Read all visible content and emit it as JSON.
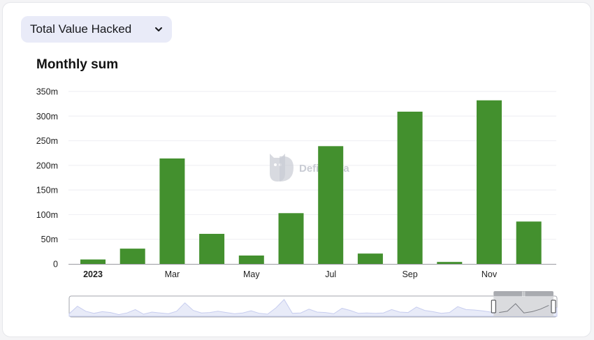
{
  "selector": {
    "label": "Total Value Hacked",
    "icon": "chevron-down-icon"
  },
  "watermark": "DefiLlama",
  "colors": {
    "bar": "#43902e",
    "accent_bg": "#e9ebf8"
  },
  "chart_data": {
    "type": "bar",
    "title": "Monthly sum",
    "xlabel": "",
    "ylabel": "",
    "categories": [
      "2023-01",
      "2023-02",
      "2023-03",
      "2023-04",
      "2023-05",
      "2023-06",
      "2023-07",
      "2023-08",
      "2023-09",
      "2023-10",
      "2023-11",
      "2023-12"
    ],
    "values": [
      9,
      31,
      214,
      61,
      17,
      103,
      239,
      21,
      309,
      4,
      332,
      86
    ],
    "value_unit": "m (millions USD)",
    "ylim": [
      0,
      350
    ],
    "yticks": [
      {
        "value": 0,
        "label": "0"
      },
      {
        "value": 50,
        "label": "50m"
      },
      {
        "value": 100,
        "label": "100m"
      },
      {
        "value": 150,
        "label": "150m"
      },
      {
        "value": 200,
        "label": "200m"
      },
      {
        "value": 250,
        "label": "250m"
      },
      {
        "value": 300,
        "label": "300m"
      },
      {
        "value": 350,
        "label": "350m"
      }
    ],
    "xticks": [
      {
        "index": 0,
        "label": "2023",
        "bold": true
      },
      {
        "index": 2,
        "label": "Mar"
      },
      {
        "index": 4,
        "label": "May"
      },
      {
        "index": 6,
        "label": "Jul"
      },
      {
        "index": 8,
        "label": "Sep"
      },
      {
        "index": 10,
        "label": "Nov"
      }
    ],
    "grid": true,
    "legend": "none"
  },
  "zoom_slider": {
    "overview_values": [
      6,
      24,
      12,
      7,
      11,
      9,
      4,
      8,
      16,
      5,
      10,
      8,
      6,
      12,
      32,
      14,
      8,
      9,
      12,
      9,
      6,
      8,
      13,
      7,
      5,
      20,
      40,
      7,
      8,
      17,
      10,
      9,
      6,
      19,
      14,
      7,
      8,
      7,
      8,
      16,
      10,
      9,
      22,
      14,
      11,
      7,
      9,
      23,
      16,
      15,
      13,
      10,
      9,
      12,
      30,
      8,
      11,
      17,
      26,
      20
    ],
    "window_start_fraction": 0.86,
    "window_end_fraction": 1.0,
    "handle_label": "|||"
  }
}
